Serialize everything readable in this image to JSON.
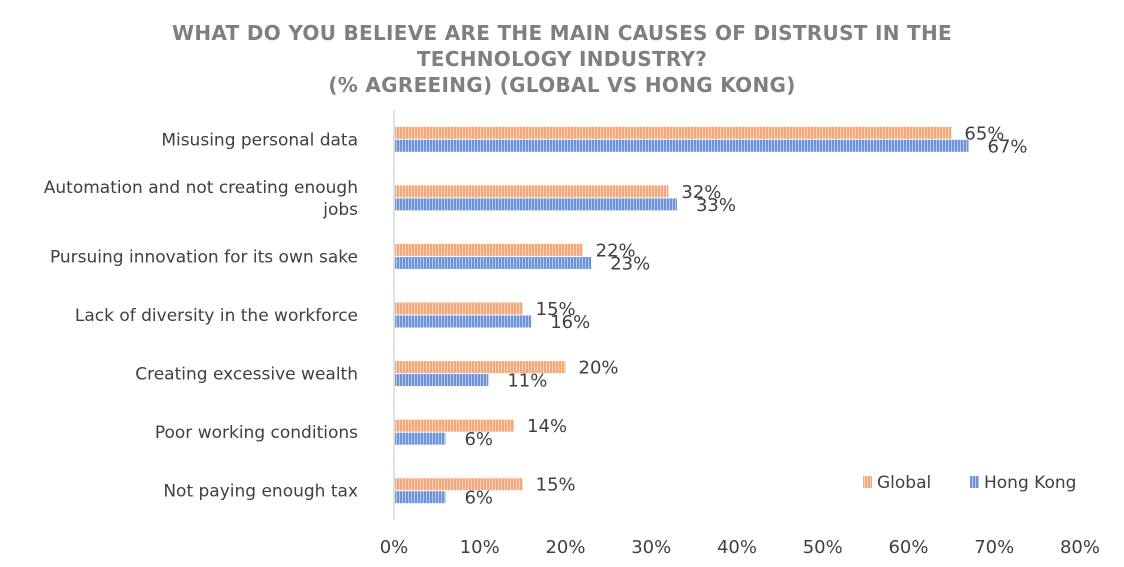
{
  "chart_data": {
    "type": "bar",
    "orientation": "horizontal",
    "title_lines": [
      "WHAT DO YOU BELIEVE ARE THE MAIN CAUSES OF DISTRUST IN THE",
      "TECHNOLOGY INDUSTRY?",
      "(% AGREEING) (GLOBAL VS HONG KONG)"
    ],
    "categories": [
      [
        "Misusing personal data"
      ],
      [
        "Automation and not creating enough",
        "jobs"
      ],
      [
        "Pursuing innovation for its own sake"
      ],
      [
        "Lack of diversity in the workforce"
      ],
      [
        "Creating excessive wealth"
      ],
      [
        "Poor working conditions"
      ],
      [
        "Not paying enough tax"
      ]
    ],
    "series": [
      {
        "name": "Global",
        "color": "#f4a77a",
        "values": [
          65,
          32,
          22,
          15,
          20,
          14,
          15
        ],
        "labels": [
          "65%",
          "32%",
          "22%",
          "15%",
          "20%",
          "14%",
          "15%"
        ]
      },
      {
        "name": "Hong Kong",
        "color": "#6f93d8",
        "values": [
          67,
          33,
          23,
          16,
          11,
          6,
          6
        ],
        "labels": [
          "67%",
          "33%",
          "23%",
          "16%",
          "11%",
          "6%",
          "6%"
        ]
      }
    ],
    "xlim": [
      0,
      80
    ],
    "xticks": [
      0,
      10,
      20,
      30,
      40,
      50,
      60,
      70,
      80
    ],
    "xtick_labels": [
      "0%",
      "10%",
      "20%",
      "30%",
      "40%",
      "50%",
      "60%",
      "70%",
      "80%"
    ],
    "legend": {
      "position": "bottom-right",
      "items": [
        "Global",
        "Hong Kong"
      ]
    },
    "grid": false
  }
}
